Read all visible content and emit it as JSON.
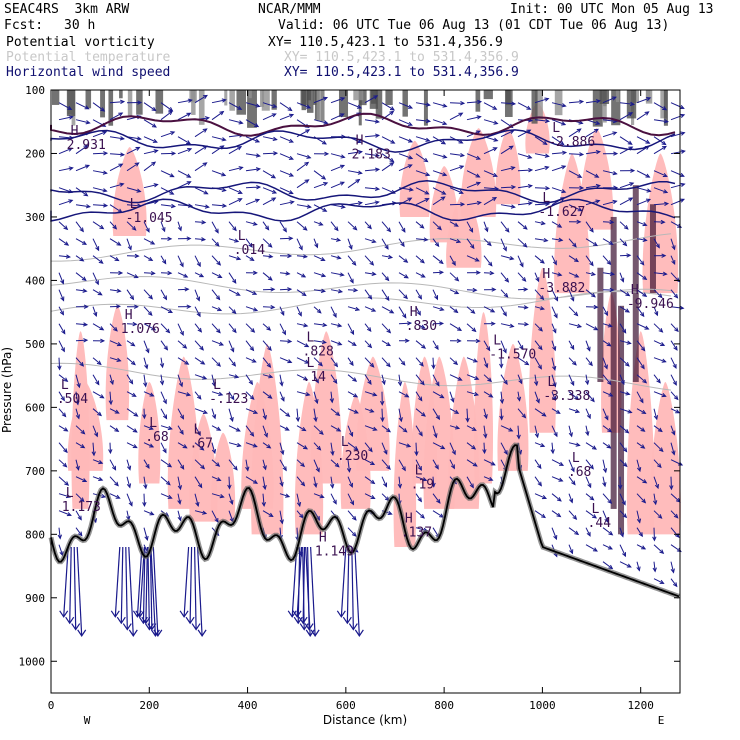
{
  "header": {
    "title_left": "SEAC4RS  3km ARW",
    "title_center": "NCAR/MMM",
    "init": "Init: 00 UTC Mon 05 Aug 13",
    "fcst_label": "Fcst:",
    "fcst_value": "30 h",
    "valid": "Valid: 06 UTC Tue 06 Aug 13 (01 CDT Tue 06 Aug 13)"
  },
  "fields": [
    {
      "name": "Potential vorticity",
      "xy": "XY= 110.5,423.1 to 531.4,356.9",
      "color": "#000000"
    },
    {
      "name": "Potential temperature",
      "xy": "XY= 110.5,423.1 to 531.4,356.9",
      "color": "#c8c8c8"
    },
    {
      "name": "Horizontal wind speed",
      "xy": "XY= 110.5,423.1 to 531.4,356.9",
      "color": "#101070"
    }
  ],
  "chart_data": {
    "type": "cross-section",
    "xlabel": "Distance (km)",
    "ylabel": "Pressure (hPa)",
    "xlim": [
      0,
      1280
    ],
    "ylim": [
      100,
      1050
    ],
    "y_inverted": true,
    "x_ticks": [
      "0",
      "200",
      "400",
      "600",
      "800",
      "1000",
      "1200"
    ],
    "y_ticks": [
      "100",
      "200",
      "300",
      "400",
      "500",
      "600",
      "700",
      "800",
      "900",
      "1000"
    ],
    "x_end_labels": {
      "left": "W",
      "right": "E"
    },
    "pv_color": "#ffb8b8",
    "wind_color": "#1a1a8c",
    "terrain_color": "#000000",
    "extrema": [
      {
        "type": "L",
        "value": ".504",
        "x": 20,
        "p": 590
      },
      {
        "type": "H",
        "value": "1.076",
        "x": 150,
        "p": 480
      },
      {
        "type": "L",
        "value": ".68",
        "x": 200,
        "p": 650
      },
      {
        "type": "L",
        "value": ".67",
        "x": 290,
        "p": 660
      },
      {
        "type": "L",
        "value": "-.123",
        "x": 330,
        "p": 590
      },
      {
        "type": "L",
        "value": ".014",
        "x": 380,
        "p": 355
      },
      {
        "type": "L",
        "value": ".828",
        "x": 520,
        "p": 515
      },
      {
        "type": "L",
        "value": ".14",
        "x": 520,
        "p": 555
      },
      {
        "type": "H",
        "value": ".830",
        "x": 730,
        "p": 475
      },
      {
        "type": "L",
        "value": "-1.570",
        "x": 900,
        "p": 520
      },
      {
        "type": "L",
        "value": "-1.045",
        "x": 160,
        "p": 305
      },
      {
        "type": "L",
        "value": "-3.338",
        "x": 1010,
        "p": 585
      },
      {
        "type": "H",
        "value": "-3.882",
        "x": 1000,
        "p": 415
      },
      {
        "type": "L",
        "value": "-1.627",
        "x": 1000,
        "p": 295
      },
      {
        "type": "L",
        "value": "-2.886",
        "x": 1020,
        "p": 185
      },
      {
        "type": "H",
        "value": "2.931",
        "x": 40,
        "p": 190
      },
      {
        "type": "H",
        "value": "2.183",
        "x": 620,
        "p": 205
      },
      {
        "type": "L",
        "value": ".230",
        "x": 590,
        "p": 680
      },
      {
        "type": "L",
        "value": "1.173",
        "x": 30,
        "p": 760
      },
      {
        "type": "H",
        "value": "1.149",
        "x": 545,
        "p": 830
      },
      {
        "type": "L",
        "value": ".19",
        "x": 740,
        "p": 725
      },
      {
        "type": "H",
        "value": ".137",
        "x": 720,
        "p": 800
      },
      {
        "type": "L",
        "value": ".68",
        "x": 1060,
        "p": 705
      },
      {
        "type": "L",
        "value": ".44",
        "x": 1100,
        "p": 785
      },
      {
        "type": "H",
        "value": "-9.946",
        "x": 1180,
        "p": 440
      }
    ]
  }
}
